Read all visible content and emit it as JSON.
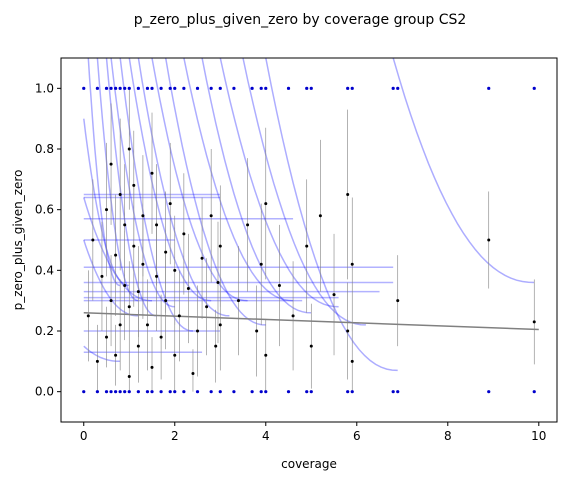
{
  "chart_data": {
    "type": "scatter",
    "title": "p_zero_plus_given_zero by coverage group CS2",
    "xlabel": "coverage",
    "ylabel": "p_zero_plus_given_zero",
    "xlim": [
      -0.5,
      10.4
    ],
    "ylim": [
      -0.1,
      1.1
    ],
    "xticks": [
      0,
      2,
      4,
      6,
      8,
      10
    ],
    "yticks": [
      0.0,
      0.2,
      0.4,
      0.6,
      0.8,
      1.0
    ],
    "grid": false,
    "legend": "none",
    "colors": {
      "points": "#000000",
      "errorbars": "#808080",
      "fit_lines": "#0000ff",
      "trend": "#808080",
      "rug": "#0000cc"
    },
    "trend_line": {
      "x": [
        0,
        10
      ],
      "y": [
        0.26,
        0.205
      ]
    },
    "fit_curves": [
      {
        "x0": 0.1,
        "y0": 1.1,
        "x1": 0.8,
        "y1": 0.35
      },
      {
        "x0": 0.3,
        "y0": 1.1,
        "x1": 1.2,
        "y1": 0.3
      },
      {
        "x0": 0.5,
        "y0": 1.1,
        "x1": 1.6,
        "y1": 0.25
      },
      {
        "x0": 0.6,
        "y0": 1.1,
        "x1": 2.0,
        "y1": 0.28
      },
      {
        "x0": 0.8,
        "y0": 1.1,
        "x1": 2.4,
        "y1": 0.2
      },
      {
        "x0": 1.0,
        "y0": 1.1,
        "x1": 2.8,
        "y1": 0.3
      },
      {
        "x0": 1.2,
        "y0": 1.1,
        "x1": 3.2,
        "y1": 0.25
      },
      {
        "x0": 1.5,
        "y0": 1.1,
        "x1": 3.6,
        "y1": 0.3
      },
      {
        "x0": 1.8,
        "y0": 1.1,
        "x1": 4.0,
        "y1": 0.22
      },
      {
        "x0": 2.2,
        "y0": 1.1,
        "x1": 4.6,
        "y1": 0.3
      },
      {
        "x0": 2.6,
        "y0": 1.1,
        "x1": 5.0,
        "y1": 0.26
      },
      {
        "x0": 3.0,
        "y0": 1.1,
        "x1": 5.6,
        "y1": 0.28
      },
      {
        "x0": 3.5,
        "y0": 1.1,
        "x1": 6.2,
        "y1": 0.22
      },
      {
        "x0": 4.0,
        "y0": 1.1,
        "x1": 6.9,
        "y1": 0.07
      },
      {
        "x0": 6.8,
        "y0": 1.1,
        "x1": 9.9,
        "y1": 0.36
      },
      {
        "x0": 0.0,
        "y0": 0.9,
        "x1": 1.0,
        "y1": 0.35
      },
      {
        "x0": 0.0,
        "y0": 0.64,
        "x1": 1.5,
        "y1": 0.3
      },
      {
        "x0": 0.0,
        "y0": 0.5,
        "x1": 1.2,
        "y1": 0.25
      },
      {
        "x0": 0.0,
        "y0": 0.15,
        "x1": 0.8,
        "y1": 0.1
      }
    ],
    "hlines": [
      {
        "x0": 0.0,
        "x1": 3.0,
        "y": 0.65
      },
      {
        "x0": 0.0,
        "x1": 3.0,
        "y": 0.64
      },
      {
        "x0": 0.0,
        "x1": 4.6,
        "y": 0.57
      },
      {
        "x0": 0.0,
        "x1": 2.0,
        "y": 0.5
      },
      {
        "x0": 0.0,
        "x1": 6.8,
        "y": 0.41
      },
      {
        "x0": 0.0,
        "x1": 6.8,
        "y": 0.36
      },
      {
        "x0": 0.0,
        "x1": 6.5,
        "y": 0.33
      },
      {
        "x0": 0.0,
        "x1": 5.6,
        "y": 0.31
      },
      {
        "x0": 0.0,
        "x1": 4.8,
        "y": 0.3
      },
      {
        "x0": 0.0,
        "x1": 3.0,
        "y": 0.2
      },
      {
        "x0": 0.0,
        "x1": 2.6,
        "y": 0.13
      }
    ],
    "points": [
      {
        "x": 0.1,
        "y": 0.25,
        "e": 0.15
      },
      {
        "x": 0.2,
        "y": 0.5,
        "e": 0.2
      },
      {
        "x": 0.3,
        "y": 0.1,
        "e": 0.12
      },
      {
        "x": 0.4,
        "y": 0.38,
        "e": 0.18
      },
      {
        "x": 0.5,
        "y": 0.6,
        "e": 0.22
      },
      {
        "x": 0.5,
        "y": 0.18,
        "e": 0.1
      },
      {
        "x": 0.6,
        "y": 0.75,
        "e": 0.2
      },
      {
        "x": 0.6,
        "y": 0.3,
        "e": 0.15
      },
      {
        "x": 0.7,
        "y": 0.45,
        "e": 0.2
      },
      {
        "x": 0.7,
        "y": 0.12,
        "e": 0.1
      },
      {
        "x": 0.8,
        "y": 0.65,
        "e": 0.25
      },
      {
        "x": 0.8,
        "y": 0.22,
        "e": 0.15
      },
      {
        "x": 0.9,
        "y": 0.55,
        "e": 0.2
      },
      {
        "x": 0.9,
        "y": 0.35,
        "e": 0.18
      },
      {
        "x": 1.0,
        "y": 0.8,
        "e": 0.2
      },
      {
        "x": 1.0,
        "y": 0.28,
        "e": 0.15
      },
      {
        "x": 1.0,
        "y": 0.05,
        "e": 0.08
      },
      {
        "x": 1.1,
        "y": 0.48,
        "e": 0.2
      },
      {
        "x": 1.1,
        "y": 0.68,
        "e": 0.18
      },
      {
        "x": 1.2,
        "y": 0.33,
        "e": 0.15
      },
      {
        "x": 1.2,
        "y": 0.15,
        "e": 0.12
      },
      {
        "x": 1.3,
        "y": 0.58,
        "e": 0.2
      },
      {
        "x": 1.3,
        "y": 0.42,
        "e": 0.18
      },
      {
        "x": 1.4,
        "y": 0.22,
        "e": 0.15
      },
      {
        "x": 1.5,
        "y": 0.72,
        "e": 0.2
      },
      {
        "x": 1.5,
        "y": 0.08,
        "e": 0.1
      },
      {
        "x": 1.6,
        "y": 0.38,
        "e": 0.18
      },
      {
        "x": 1.6,
        "y": 0.55,
        "e": 0.2
      },
      {
        "x": 1.7,
        "y": 0.18,
        "e": 0.14
      },
      {
        "x": 1.8,
        "y": 0.46,
        "e": 0.2
      },
      {
        "x": 1.8,
        "y": 0.3,
        "e": 0.16
      },
      {
        "x": 1.9,
        "y": 0.62,
        "e": 0.2
      },
      {
        "x": 2.0,
        "y": 0.12,
        "e": 0.12
      },
      {
        "x": 2.0,
        "y": 0.4,
        "e": 0.18
      },
      {
        "x": 2.1,
        "y": 0.25,
        "e": 0.15
      },
      {
        "x": 2.2,
        "y": 0.52,
        "e": 0.2
      },
      {
        "x": 2.3,
        "y": 0.34,
        "e": 0.18
      },
      {
        "x": 2.4,
        "y": 0.06,
        "e": 0.08
      },
      {
        "x": 2.5,
        "y": 0.2,
        "e": 0.15
      },
      {
        "x": 2.6,
        "y": 0.44,
        "e": 0.2
      },
      {
        "x": 2.7,
        "y": 0.28,
        "e": 0.16
      },
      {
        "x": 2.8,
        "y": 0.58,
        "e": 0.22
      },
      {
        "x": 2.9,
        "y": 0.15,
        "e": 0.12
      },
      {
        "x": 2.95,
        "y": 0.36,
        "e": 0.2
      },
      {
        "x": 3.0,
        "y": 0.22,
        "e": 0.15
      },
      {
        "x": 3.0,
        "y": 0.48,
        "e": 0.2
      },
      {
        "x": 3.4,
        "y": 0.3,
        "e": 0.18
      },
      {
        "x": 3.6,
        "y": 0.55,
        "e": 0.22
      },
      {
        "x": 3.8,
        "y": 0.2,
        "e": 0.15
      },
      {
        "x": 3.9,
        "y": 0.42,
        "e": 0.2
      },
      {
        "x": 4.0,
        "y": 0.12,
        "e": 0.12
      },
      {
        "x": 4.0,
        "y": 0.62,
        "e": 0.25
      },
      {
        "x": 4.3,
        "y": 0.35,
        "e": 0.2
      },
      {
        "x": 4.6,
        "y": 0.25,
        "e": 0.18
      },
      {
        "x": 4.9,
        "y": 0.48,
        "e": 0.22
      },
      {
        "x": 5.0,
        "y": 0.15,
        "e": 0.14
      },
      {
        "x": 5.2,
        "y": 0.58,
        "e": 0.25
      },
      {
        "x": 5.5,
        "y": 0.32,
        "e": 0.2
      },
      {
        "x": 5.8,
        "y": 0.65,
        "e": 0.28
      },
      {
        "x": 5.8,
        "y": 0.2,
        "e": 0.16
      },
      {
        "x": 5.9,
        "y": 0.42,
        "e": 0.22
      },
      {
        "x": 5.9,
        "y": 0.1,
        "e": 0.12
      },
      {
        "x": 6.9,
        "y": 0.3,
        "e": 0.15
      },
      {
        "x": 8.9,
        "y": 0.5,
        "e": 0.16
      },
      {
        "x": 9.9,
        "y": 0.23,
        "e": 0.14
      }
    ],
    "rug_x": [
      0.0,
      0.3,
      0.5,
      0.6,
      0.7,
      0.8,
      0.9,
      1.0,
      1.2,
      1.4,
      1.5,
      1.7,
      1.9,
      2.0,
      2.2,
      2.5,
      2.8,
      3.0,
      3.3,
      3.7,
      3.9,
      4.0,
      4.5,
      4.9,
      5.0,
      5.8,
      5.9,
      6.8,
      6.9,
      8.9,
      9.9
    ]
  }
}
